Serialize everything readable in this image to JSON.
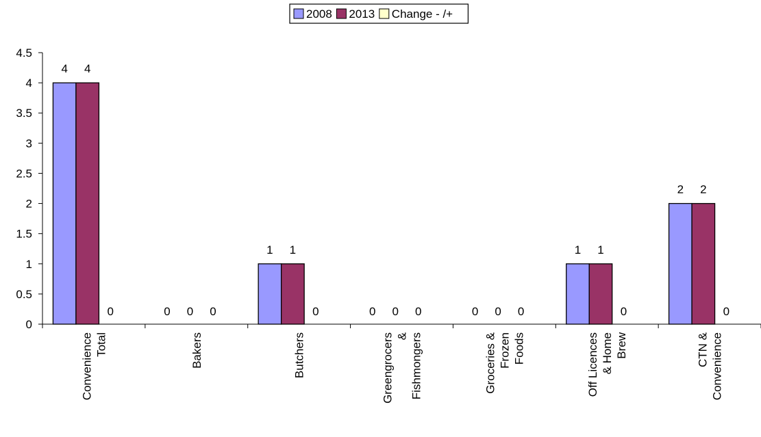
{
  "chart_data": {
    "type": "bar",
    "categories": [
      [
        "Convenience",
        "Total"
      ],
      [
        "Bakers"
      ],
      [
        "Butchers"
      ],
      [
        "Greengrocers",
        "&",
        "Fishmongers"
      ],
      [
        "Groceries &",
        "Frozen",
        "Foods"
      ],
      [
        "Off Licences",
        "& Home",
        "Brew"
      ],
      [
        "CTN &",
        "Convenience"
      ]
    ],
    "series": [
      {
        "name": "2008",
        "values": [
          4,
          0,
          1,
          0,
          0,
          1,
          2
        ],
        "color": "#9999ff"
      },
      {
        "name": "2013",
        "values": [
          4,
          0,
          1,
          0,
          0,
          1,
          2
        ],
        "color": "#993366"
      },
      {
        "name": "Change - /+",
        "values": [
          0,
          0,
          0,
          0,
          0,
          0,
          0
        ],
        "color": "#ffffcc"
      }
    ],
    "ylim": [
      0,
      4.5
    ],
    "yticks": [
      0,
      0.5,
      1,
      1.5,
      2,
      2.5,
      3,
      3.5,
      4,
      4.5
    ],
    "ytick_labels": [
      "0",
      "0.5",
      "1",
      "1.5",
      "2",
      "2.5",
      "3",
      "3.5",
      "4",
      "4.5"
    ],
    "data_labels": true,
    "grid": false,
    "legend_position": "top"
  }
}
